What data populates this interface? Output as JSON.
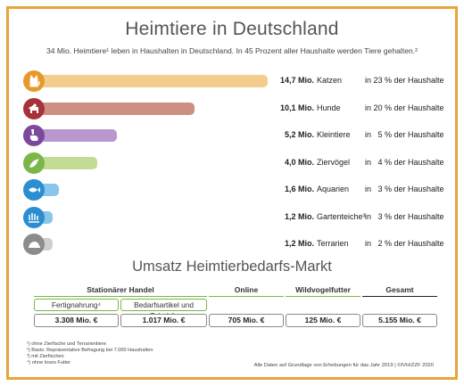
{
  "chart_data": {
    "type": "bar",
    "title": "Heimtiere in Deutschland",
    "subtitle": "34 Mio. Heimtiere¹ leben in Haushalten in Deutschland. In 45 Prozent aller Haushalte werden Tiere gehalten.²",
    "unit": "Mio.",
    "categories": [
      "Katzen",
      "Hunde",
      "Kleintiere",
      "Ziervögel",
      "Aquarien",
      "Gartenteiche³",
      "Terrarien"
    ],
    "values": [
      14.7,
      10.1,
      5.2,
      4.0,
      1.6,
      1.2,
      1.2
    ],
    "value_labels": [
      "14,7 Mio.",
      "10,1 Mio.",
      "5,2 Mio.",
      "4,0 Mio.",
      "1,6 Mio.",
      "1,2 Mio.",
      "1,2 Mio."
    ],
    "household_share_labels": [
      "in 23 % der Haushalte",
      "in 20 % der Haushalte",
      "in   5 % der Haushalte",
      "in   4 % der Haushalte",
      "in   3 % der Haushalte",
      "in   3 % der Haushalte",
      "in   2 % der Haushalte"
    ],
    "household_share_percent": [
      23,
      20,
      5,
      4,
      3,
      3,
      2
    ],
    "bar_colors": [
      "#f2cd8b",
      "#cf8e84",
      "#b898cf",
      "#c3dc93",
      "#8ac6ea",
      "#8ac6ea",
      "#cfcfcf"
    ],
    "icon_colors": [
      "#e79a2b",
      "#a8323a",
      "#7b4a9c",
      "#7ab648",
      "#2a8ed0",
      "#2a8ed0",
      "#8c8c8c"
    ],
    "icons": [
      "cat-icon",
      "dog-icon",
      "rabbit-icon",
      "bird-icon",
      "fish-icon",
      "pond-icon",
      "turtle-icon"
    ],
    "xlim": [
      0,
      15.5
    ],
    "grid": false,
    "legend": "none"
  },
  "market": {
    "title": "Umsatz Heimtierbedarfs-Markt",
    "columns": [
      {
        "label": "Stationärer Handel",
        "color": "#7ab648"
      },
      {
        "label": "Online",
        "color": "#7ab648"
      },
      {
        "label": "Wildvogelfutter",
        "color": "#7ab648"
      },
      {
        "label": "Gesamt",
        "color": "#222222"
      }
    ],
    "sub_labels": [
      "Fertignahrung⁴",
      "Bedarfsartikel und Zubehör"
    ],
    "values": [
      "3.308 Mio. €",
      "1.017 Mio. €",
      "705 Mio. €",
      "125 Mio. €",
      "5.155 Mio. €"
    ],
    "values_numeric_mio_eur": [
      3308,
      1017,
      705,
      125,
      5155
    ]
  },
  "footnotes": [
    "¹) ohne Zierfische und Terrarientiere",
    "²) Basis: Repräsentative Befragung bei 7.000 Haushalten",
    "³) mit Zierfischen",
    "⁴) ohne loses Futter"
  ],
  "source": "Alle Daten auf Grundlage von Erhebungen für das Jahr 2019 | ©IVH/ZZF 2020",
  "colors": {
    "frame": "#e8a33d",
    "accent_green": "#7ab648"
  }
}
